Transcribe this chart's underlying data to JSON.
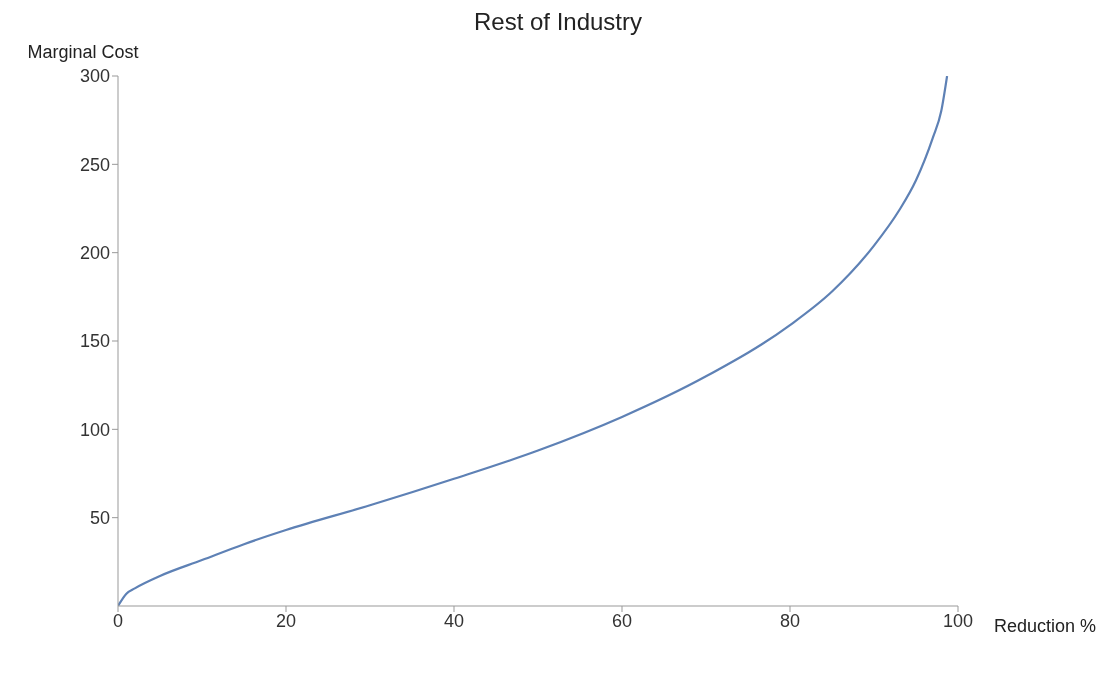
{
  "chart_data": {
    "type": "line",
    "title": "Rest of Industry",
    "xlabel": "Reduction %",
    "ylabel": "Marginal Cost",
    "xlim": [
      0,
      100
    ],
    "xticks": [
      0,
      20,
      40,
      60,
      80,
      100
    ],
    "ylim": [
      0,
      300
    ],
    "yticks": [
      50,
      100,
      150,
      200,
      250,
      300
    ],
    "grid": false,
    "legend": false,
    "marker": "none",
    "line_style": "solid",
    "series": [
      {
        "color": "#5e81b5",
        "x": [
          0,
          1,
          2,
          5,
          10,
          15,
          20,
          30,
          40,
          50,
          60,
          70,
          80,
          85,
          90,
          93,
          95,
          97,
          98,
          98.7
        ],
        "values": [
          0,
          7,
          10,
          17,
          26,
          35,
          43,
          57,
          72,
          88,
          107,
          130,
          159,
          178,
          204,
          224,
          241,
          265,
          280,
          300
        ]
      }
    ]
  }
}
